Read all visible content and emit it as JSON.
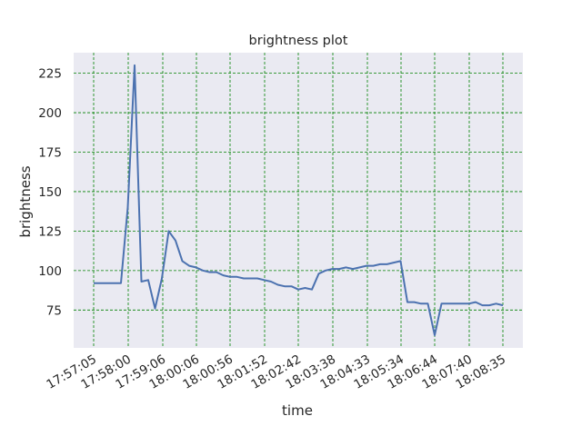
{
  "chart_data": {
    "type": "line",
    "title": "brightness plot",
    "xlabel": "time",
    "ylabel": "brightness",
    "grid": true,
    "colors": {
      "background": "#eaeaf2",
      "line": "#4c72b0",
      "grid": "#008000"
    },
    "x_ticks": [
      "17:57:05",
      "17:58:00",
      "17:59:06",
      "18:00:06",
      "18:00:56",
      "18:01:52",
      "18:02:42",
      "18:03:38",
      "18:04:33",
      "18:05:34",
      "18:06:44",
      "18:07:40",
      "18:08:35"
    ],
    "y_ticks": [
      75,
      100,
      125,
      150,
      175,
      200,
      225
    ],
    "ylim": [
      51,
      238
    ],
    "series": [
      {
        "values": [
          92,
          92,
          92,
          92,
          92,
          140,
          230,
          93,
          94,
          76,
          95,
          125,
          119,
          106,
          103,
          102,
          100,
          99,
          99,
          97,
          96,
          96,
          95,
          95,
          95,
          94,
          93,
          91,
          90,
          90,
          88,
          89,
          88,
          98,
          100,
          101,
          101,
          102,
          101,
          102,
          103,
          103,
          104,
          104,
          105,
          106,
          80,
          80,
          79,
          79,
          59,
          79,
          79,
          79,
          79,
          79,
          80,
          78,
          78,
          79,
          78
        ]
      }
    ]
  }
}
